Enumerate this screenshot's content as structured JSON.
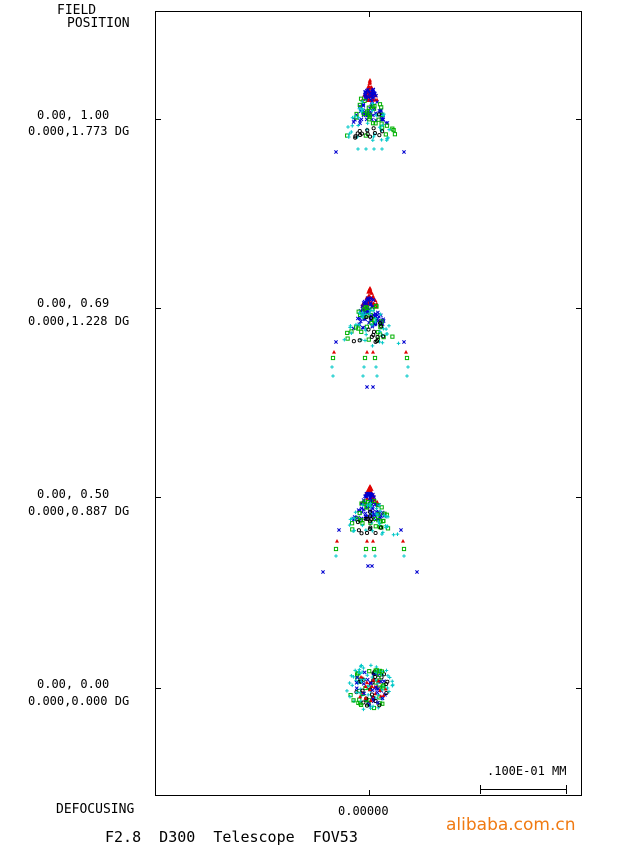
{
  "header": {
    "line1": "FIELD",
    "line2": "POSITION"
  },
  "fields": [
    {
      "norm": "0.00, 1.00",
      "deg": "0.000,1.773",
      "unit": "DG"
    },
    {
      "norm": "0.00, 0.69",
      "deg": "0.000,1.228",
      "unit": "DG"
    },
    {
      "norm": "0.00, 0.50",
      "deg": "0.000,0.887",
      "unit": "DG"
    },
    {
      "norm": "0.00, 0.00",
      "deg": "0.000,0.000",
      "unit": "DG"
    }
  ],
  "footer": {
    "defocusing_label": "DEFOCUSING",
    "defocus_value": "0.00000",
    "scale_label": ".100E-01 MM",
    "title": "F2.8  D300  Telescope  FOV53"
  },
  "watermark": "alibaba.com.cn",
  "colors": {
    "wavelength_1": "#e00000",
    "wavelength_2": "#00b000",
    "wavelength_3": "#0000d0",
    "wavelength_4": "#00c8c8",
    "wavelength_5": "#000000",
    "watermark": "#f07a12"
  },
  "marker_symbols": [
    "triangle",
    "square",
    "x",
    "plus",
    "circle"
  ]
}
